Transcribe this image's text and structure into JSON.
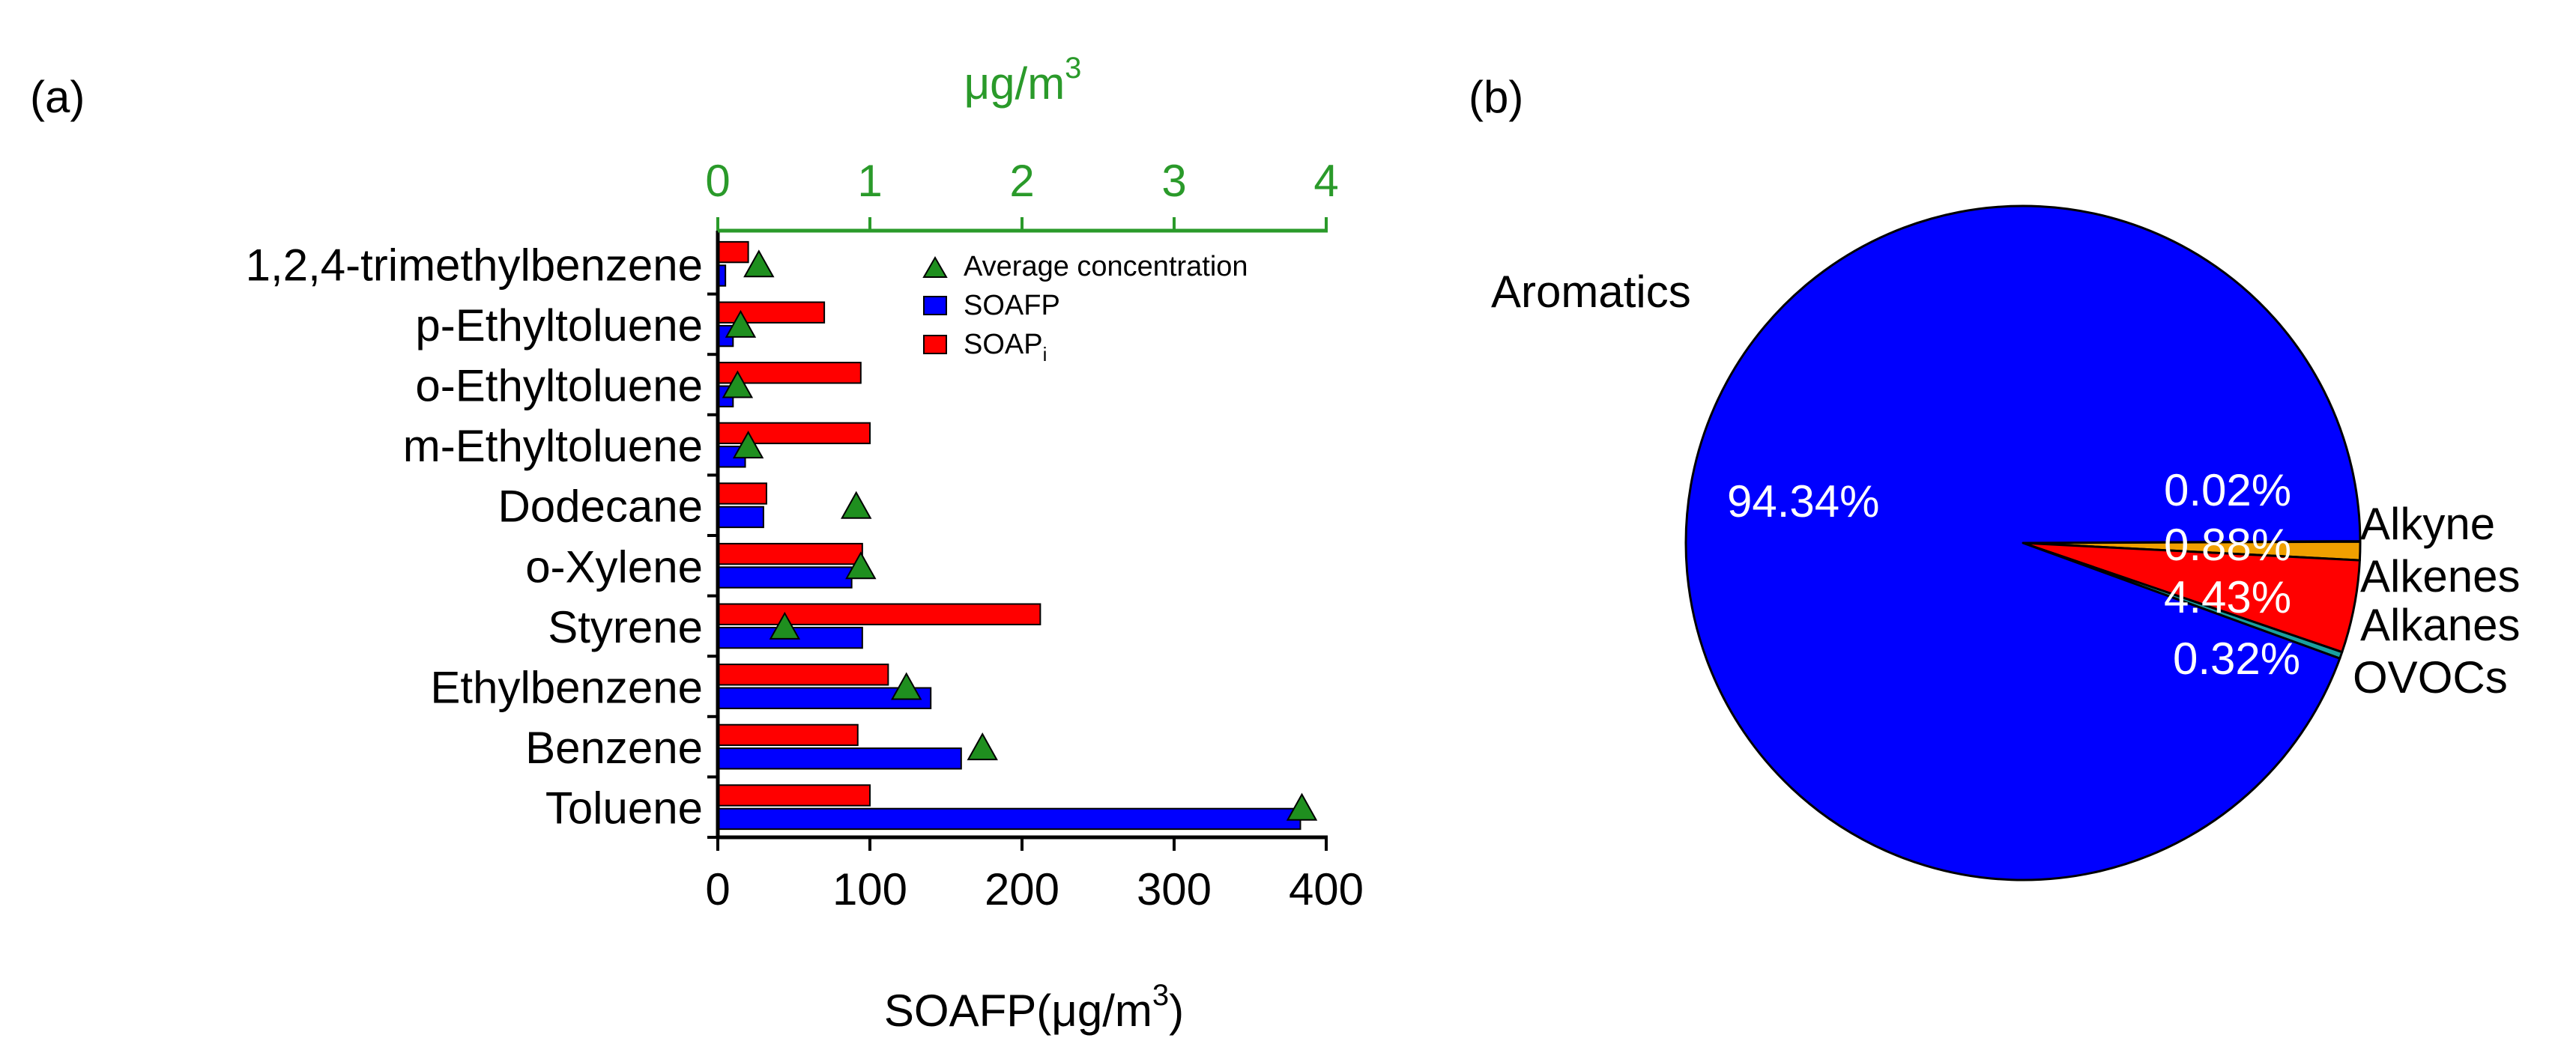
{
  "chart_data": [
    {
      "panel": "(a)",
      "type": "bar",
      "orientation": "horizontal",
      "categories": [
        "Toluene",
        "Benzene",
        "Ethylbenzene",
        "Styrene",
        "o-Xylene",
        "Dodecane",
        "m-Ethyltoluene",
        "o-Ethyltoluene",
        "p-Ethyltoluene",
        "1,2,4-trimethylbenzene"
      ],
      "series": [
        {
          "name": "SOAFP",
          "color": "#0000ff",
          "values": [
            383,
            160,
            140,
            95,
            88,
            30,
            18,
            10,
            10,
            5
          ]
        },
        {
          "name": "SOAP",
          "name_subscript": "i",
          "color": "#ff0000",
          "values": [
            100,
            92,
            112,
            212,
            95,
            32,
            100,
            94,
            70,
            20
          ]
        },
        {
          "name": "Average concentration",
          "color": "#1f8f1f",
          "marker": "triangle",
          "axis": "top",
          "values": [
            3.84,
            1.74,
            1.24,
            0.44,
            0.94,
            0.91,
            0.2,
            0.13,
            0.15,
            0.27
          ]
        }
      ],
      "xlabel": "SOAFP(μg/m",
      "xlabel_sup": "3",
      "xlabel_close": ")",
      "xlim": [
        0,
        400
      ],
      "xticks": [
        "0",
        "100",
        "200",
        "300",
        "400"
      ],
      "x2label": "μg/m",
      "x2label_sup": "3",
      "x2lim": [
        0,
        4
      ],
      "x2ticks": [
        "0",
        "1",
        "2",
        "3",
        "4"
      ],
      "legend_position": "top-right"
    },
    {
      "panel": "(b)",
      "type": "pie",
      "slices": [
        {
          "label": "Aromatics",
          "percent_label": "94.34%",
          "value": 94.34,
          "color": "#0000ff"
        },
        {
          "label": "Alkyne",
          "percent_label": "0.02%",
          "value": 0.02,
          "color": "#00aaff"
        },
        {
          "label": "Alkenes",
          "percent_label": "0.88%",
          "value": 0.88,
          "color": "#f0a000"
        },
        {
          "label": "Alkanes",
          "percent_label": "4.43%",
          "value": 4.43,
          "color": "#ff0000"
        },
        {
          "label": "OVOCs",
          "percent_label": "0.32%",
          "value": 0.32,
          "color": "#1aa0a0"
        }
      ]
    }
  ]
}
